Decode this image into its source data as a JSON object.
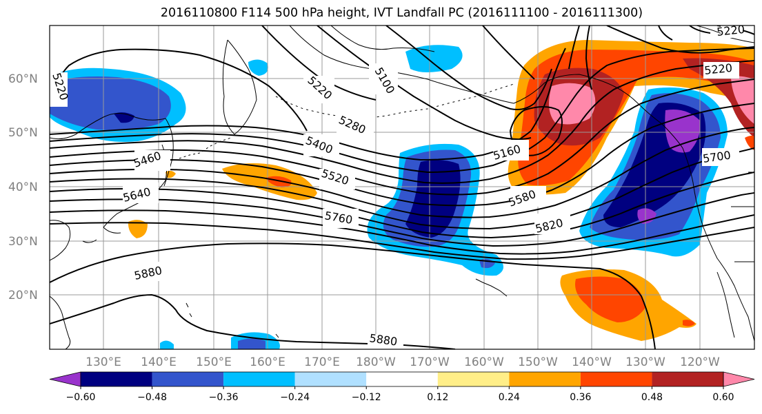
{
  "title": "2016110800 F114 500 hPa height, IVT Landfall PC (2016111100 - 2016111300)",
  "lon_ticks": [
    "130°E",
    "140°E",
    "150°E",
    "160°E",
    "170°E",
    "180°W",
    "170°W",
    "160°W",
    "150°W",
    "140°W",
    "130°W",
    "120°W"
  ],
  "lat_ticks": [
    "60°N",
    "50°N",
    "40°N",
    "30°N",
    "20°N"
  ],
  "contour_labels": [
    "5220",
    "5100",
    "5220",
    "5280",
    "5400",
    "5460",
    "5520",
    "5640",
    "5580",
    "5160",
    "5760",
    "5820",
    "5880",
    "5880",
    "5700",
    "5220",
    "5220"
  ],
  "colorbar": {
    "ticks": [
      "−0.60",
      "−0.48",
      "−0.36",
      "−0.24",
      "−0.12",
      "0.12",
      "0.24",
      "0.36",
      "0.48",
      "0.60"
    ],
    "colors": [
      "#9933cc",
      "#000080",
      "#3355cc",
      "#00bfff",
      "#b0e0ff",
      "#ffffff",
      "#ffee88",
      "#ffa500",
      "#ff4500",
      "#b22222",
      "#ff88aa"
    ]
  },
  "palette": {
    "neg060": "#9933cc",
    "neg048": "#000080",
    "neg036": "#3355cc",
    "neg024": "#00bfff",
    "pos024": "#ffa500",
    "pos036": "#ff4500",
    "pos048": "#b22222",
    "pos060": "#ff88aa",
    "neg012": "#b0e0ff",
    "pos012": "#ffee88"
  }
}
